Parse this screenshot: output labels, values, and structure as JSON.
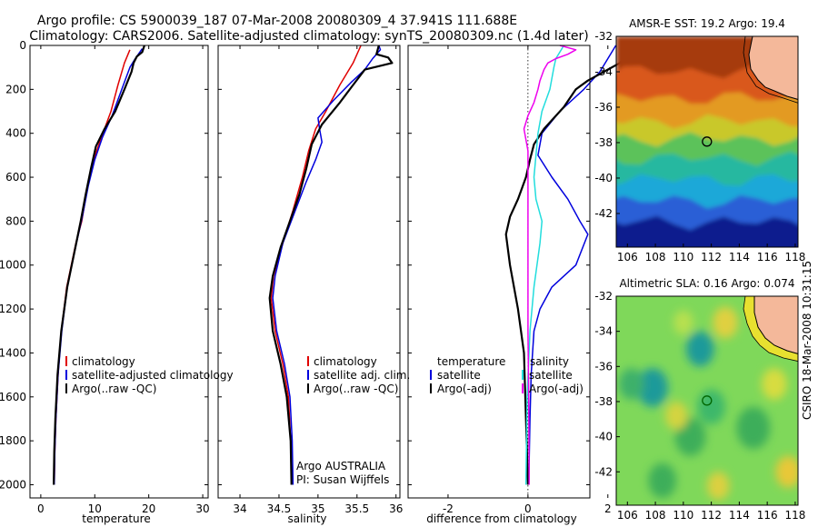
{
  "header": {
    "line1": "Argo profile: CS 5900039_187 07-Mar-2008 20080309_4 37.941S 111.688E",
    "line2": "Climatology: CARS2006. Satellite-adjusted climatology: synTS_20080309.nc (1.4d later)"
  },
  "side_label": "CSIRO 18-Mar-2008 10:31:15",
  "credit": {
    "line1": "Argo AUSTRALIA",
    "line2": "PI: Susan Wijffels"
  },
  "colors": {
    "climatology": "#e00000",
    "satellite": "#0000dd",
    "argo": "#000000",
    "sat_diff_salinity": "#22dddd",
    "argo_diff_salinity": "#ee00ee",
    "land": "#f4b89a",
    "argo_marker_sst": "#000000",
    "argo_marker_sla": "#006600"
  },
  "legends": {
    "temperature": [
      "climatology",
      "satellite-adjusted climatology",
      "Argo(..raw -QC)"
    ],
    "salinity": [
      "climatology",
      "satellite adj. clim.",
      "Argo(..raw -QC)"
    ],
    "difference": {
      "temp_head": "temperature",
      "sal_head": "salinity",
      "temp_items": [
        "satellite",
        "Argo(-adj)"
      ],
      "sal_items": [
        "satellite",
        "Argo(-adj)"
      ]
    }
  },
  "chart_data": [
    {
      "type": "line",
      "xlabel": "temperature",
      "ylabel": "",
      "xlim": [
        -2,
        31
      ],
      "ylim": [
        2060,
        0
      ],
      "x_ticks": [
        0,
        10,
        20,
        30
      ],
      "y_ticks": [
        0,
        200,
        400,
        600,
        800,
        1000,
        1200,
        1400,
        1600,
        1800,
        2000
      ],
      "y_reversed": true,
      "series": [
        {
          "name": "climatology",
          "color_key": "climatology",
          "points": [
            [
              16.5,
              20
            ],
            [
              15.5,
              80
            ],
            [
              14.3,
              180
            ],
            [
              13.0,
              300
            ],
            [
              11.2,
              420
            ],
            [
              9.8,
              520
            ],
            [
              8.6,
              650
            ],
            [
              7.6,
              800
            ],
            [
              6.5,
              900
            ],
            [
              4.8,
              1100
            ],
            [
              3.8,
              1300
            ],
            [
              3.2,
              1500
            ],
            [
              2.8,
              1700
            ],
            [
              2.6,
              1850
            ],
            [
              2.5,
              2000
            ]
          ]
        },
        {
          "name": "satellite-adjusted climatology",
          "color_key": "satellite",
          "points": [
            [
              18.8,
              15
            ],
            [
              17.5,
              60
            ],
            [
              16.5,
              100
            ],
            [
              15.0,
              200
            ],
            [
              13.2,
              320
            ],
            [
              11.4,
              420
            ],
            [
              10.0,
              520
            ],
            [
              8.8,
              640
            ],
            [
              7.7,
              780
            ],
            [
              6.6,
              900
            ],
            [
              4.9,
              1100
            ],
            [
              3.9,
              1300
            ],
            [
              3.2,
              1500
            ],
            [
              2.8,
              1700
            ],
            [
              2.6,
              1850
            ],
            [
              2.5,
              2000
            ]
          ]
        },
        {
          "name": "Argo(..raw -QC)",
          "color_key": "argo",
          "points": [
            [
              19.2,
              0
            ],
            [
              18.8,
              30
            ],
            [
              17.8,
              50
            ],
            [
              17.2,
              80
            ],
            [
              16.8,
              120
            ],
            [
              15.5,
              200
            ],
            [
              13.8,
              300
            ],
            [
              11.8,
              380
            ],
            [
              10.2,
              460
            ],
            [
              9.3,
              560
            ],
            [
              8.3,
              680
            ],
            [
              7.4,
              800
            ],
            [
              6.4,
              920
            ],
            [
              4.9,
              1100
            ],
            [
              3.8,
              1300
            ],
            [
              3.1,
              1500
            ],
            [
              2.7,
              1700
            ],
            [
              2.5,
              1850
            ],
            [
              2.4,
              2000
            ]
          ]
        }
      ]
    },
    {
      "type": "line",
      "xlabel": "salinity",
      "ylabel": "",
      "xlim": [
        33.72,
        36.05
      ],
      "ylim": [
        2060,
        0
      ],
      "x_ticks": [
        34,
        34.5,
        35,
        35.5,
        36
      ],
      "y_ticks": [
        0,
        200,
        400,
        600,
        800,
        1000,
        1200,
        1400,
        1600,
        1800,
        2000
      ],
      "y_reversed": true,
      "series": [
        {
          "name": "climatology",
          "color_key": "climatology",
          "points": [
            [
              35.55,
              0
            ],
            [
              35.45,
              80
            ],
            [
              35.28,
              180
            ],
            [
              35.1,
              300
            ],
            [
              34.97,
              380
            ],
            [
              34.88,
              480
            ],
            [
              34.8,
              600
            ],
            [
              34.68,
              750
            ],
            [
              34.55,
              900
            ],
            [
              34.43,
              1050
            ],
            [
              34.4,
              1150
            ],
            [
              34.45,
              1300
            ],
            [
              34.55,
              1450
            ],
            [
              34.62,
              1600
            ],
            [
              34.65,
              1800
            ],
            [
              34.66,
              2000
            ]
          ]
        },
        {
          "name": "satellite adj. clim.",
          "color_key": "satellite",
          "points": [
            [
              35.78,
              0
            ],
            [
              35.8,
              20
            ],
            [
              35.7,
              60
            ],
            [
              35.6,
              110
            ],
            [
              35.42,
              170
            ],
            [
              35.2,
              250
            ],
            [
              35.0,
              330
            ],
            [
              35.02,
              380
            ],
            [
              35.05,
              440
            ],
            [
              34.97,
              520
            ],
            [
              34.85,
              620
            ],
            [
              34.7,
              760
            ],
            [
              34.55,
              900
            ],
            [
              34.45,
              1050
            ],
            [
              34.42,
              1150
            ],
            [
              34.47,
              1300
            ],
            [
              34.57,
              1450
            ],
            [
              34.64,
              1600
            ],
            [
              34.67,
              1800
            ],
            [
              34.68,
              2000
            ]
          ]
        },
        {
          "name": "Argo(..raw -QC)",
          "color_key": "argo",
          "points": [
            [
              35.78,
              0
            ],
            [
              35.75,
              40
            ],
            [
              35.9,
              55
            ],
            [
              35.95,
              80
            ],
            [
              35.6,
              110
            ],
            [
              35.45,
              180
            ],
            [
              35.28,
              260
            ],
            [
              35.05,
              360
            ],
            [
              34.92,
              450
            ],
            [
              34.85,
              560
            ],
            [
              34.76,
              680
            ],
            [
              34.64,
              800
            ],
            [
              34.52,
              920
            ],
            [
              34.42,
              1050
            ],
            [
              34.38,
              1150
            ],
            [
              34.42,
              1300
            ],
            [
              34.52,
              1450
            ],
            [
              34.6,
              1600
            ],
            [
              34.65,
              1800
            ],
            [
              34.66,
              2000
            ]
          ]
        }
      ]
    },
    {
      "type": "line",
      "xlabel": "difference from climatology",
      "ylabel": "",
      "xlim": [
        -3.0,
        1.55
      ],
      "ylim": [
        2060,
        0
      ],
      "x_ticks": [
        -2,
        0,
        2
      ],
      "y_ticks": [
        0,
        200,
        400,
        600,
        800,
        1000,
        1200,
        1400,
        1600,
        1800,
        2000
      ],
      "y_reversed": true,
      "zero_line": 0,
      "series": [
        {
          "name": "temperature satellite",
          "color_key": "satellite",
          "points": [
            [
              2.2,
              0
            ],
            [
              2.0,
              60
            ],
            [
              1.8,
              120
            ],
            [
              1.4,
              200
            ],
            [
              0.8,
              300
            ],
            [
              0.35,
              400
            ],
            [
              0.25,
              500
            ],
            [
              0.6,
              600
            ],
            [
              1.0,
              700
            ],
            [
              1.3,
              800
            ],
            [
              1.5,
              860
            ],
            [
              1.2,
              1000
            ],
            [
              0.6,
              1100
            ],
            [
              0.3,
              1200
            ],
            [
              0.15,
              1300
            ],
            [
              0.08,
              1500
            ],
            [
              0.05,
              1700
            ],
            [
              0.02,
              2000
            ]
          ]
        },
        {
          "name": "temperature Argo(-adj)",
          "color_key": "argo",
          "points": [
            [
              2.6,
              0
            ],
            [
              2.5,
              40
            ],
            [
              2.3,
              80
            ],
            [
              1.9,
              120
            ],
            [
              1.5,
              160
            ],
            [
              1.2,
              200
            ],
            [
              0.9,
              280
            ],
            [
              0.4,
              380
            ],
            [
              0.15,
              450
            ],
            [
              0.05,
              520
            ],
            [
              -0.05,
              600
            ],
            [
              -0.25,
              700
            ],
            [
              -0.45,
              780
            ],
            [
              -0.55,
              860
            ],
            [
              -0.45,
              1000
            ],
            [
              -0.25,
              1200
            ],
            [
              -0.1,
              1400
            ],
            [
              -0.05,
              1700
            ],
            [
              0.0,
              2000
            ]
          ]
        },
        {
          "name": "salinity satellite",
          "color_key": "sat_diff_salinity",
          "points": [
            [
              0.9,
              0
            ],
            [
              0.7,
              60
            ],
            [
              0.65,
              100
            ],
            [
              0.55,
              200
            ],
            [
              0.35,
              300
            ],
            [
              0.25,
              400
            ],
            [
              0.2,
              500
            ],
            [
              0.15,
              600
            ],
            [
              0.2,
              700
            ],
            [
              0.35,
              800
            ],
            [
              0.3,
              900
            ],
            [
              0.15,
              1100
            ],
            [
              0.05,
              1300
            ],
            [
              -0.02,
              1600
            ],
            [
              -0.05,
              2000
            ]
          ]
        },
        {
          "name": "salinity Argo(-adj)",
          "color_key": "argo_diff_salinity",
          "points": [
            [
              0.8,
              0
            ],
            [
              1.2,
              20
            ],
            [
              1.0,
              40
            ],
            [
              0.7,
              60
            ],
            [
              0.5,
              80
            ],
            [
              0.4,
              110
            ],
            [
              0.3,
              160
            ],
            [
              0.25,
              200
            ],
            [
              0.15,
              260
            ],
            [
              0.0,
              320
            ],
            [
              -0.1,
              380
            ],
            [
              0.0,
              480
            ],
            [
              0.0,
              600
            ],
            [
              0.0,
              800
            ],
            [
              0.0,
              1000
            ],
            [
              0.0,
              1300
            ],
            [
              0.02,
              1600
            ],
            [
              0.03,
              2000
            ]
          ]
        }
      ]
    },
    {
      "type": "heatmap",
      "title": "AMSR-E SST: 19.2 Argo: 19.4",
      "xlim": [
        105.2,
        118.2
      ],
      "ylim": [
        -43.9,
        -32
      ],
      "x_ticks": [
        106,
        108,
        110,
        112,
        114,
        116,
        118
      ],
      "y_ticks": [
        -32,
        -34,
        -36,
        -38,
        -40,
        -42
      ],
      "argo_position": [
        111.688,
        -37.941
      ],
      "field_note": "warm (red) north grading to cold (blue) south",
      "color_stops": [
        {
          "lat": -32.5,
          "color": "#a63a10"
        },
        {
          "lat": -34.5,
          "color": "#d9581a"
        },
        {
          "lat": -36.0,
          "color": "#e39a20"
        },
        {
          "lat": -37.3,
          "color": "#c9c82a"
        },
        {
          "lat": -38.3,
          "color": "#5cc25a"
        },
        {
          "lat": -39.4,
          "color": "#28b8a0"
        },
        {
          "lat": -40.6,
          "color": "#1ca8d8"
        },
        {
          "lat": -41.8,
          "color": "#2a5ed6"
        },
        {
          "lat": -43.0,
          "color": "#0c1c8e"
        }
      ]
    },
    {
      "type": "heatmap",
      "title": "Altimetric SLA: 0.16 Argo: 0.074",
      "xlim": [
        105.2,
        118.2
      ],
      "ylim": [
        -43.9,
        -32
      ],
      "x_ticks": [
        106,
        108,
        110,
        112,
        114,
        116,
        118
      ],
      "y_ticks": [
        -32,
        -34,
        -36,
        -38,
        -40,
        -42
      ],
      "argo_position": [
        111.688,
        -37.941
      ],
      "background_color": "#7fd85a",
      "anomalies": [
        {
          "lon": 111.2,
          "lat": -35.0,
          "r": 1.0,
          "color": "#1e9a9a"
        },
        {
          "lon": 107.8,
          "lat": -37.2,
          "r": 1.1,
          "color": "#1e9a9a"
        },
        {
          "lon": 106.3,
          "lat": -37.0,
          "r": 0.9,
          "color": "#3cb06a"
        },
        {
          "lon": 112.0,
          "lat": -38.3,
          "r": 1.0,
          "color": "#3cb86a"
        },
        {
          "lon": 115.0,
          "lat": -39.5,
          "r": 1.2,
          "color": "#3cae5a"
        },
        {
          "lon": 110.5,
          "lat": -40.0,
          "r": 1.1,
          "color": "#3cae5a"
        },
        {
          "lon": 108.5,
          "lat": -42.5,
          "r": 1.0,
          "color": "#3cae5a"
        },
        {
          "lon": 113.0,
          "lat": -33.5,
          "r": 0.9,
          "color": "#e0d040"
        },
        {
          "lon": 110.0,
          "lat": -33.5,
          "r": 0.7,
          "color": "#b8e050"
        },
        {
          "lon": 116.5,
          "lat": -37.0,
          "r": 0.9,
          "color": "#d8dc40"
        },
        {
          "lon": 109.5,
          "lat": -38.8,
          "r": 0.8,
          "color": "#d4d440"
        },
        {
          "lon": 117.5,
          "lat": -42.0,
          "r": 0.9,
          "color": "#e8c838"
        },
        {
          "lon": 112.5,
          "lat": -42.8,
          "r": 0.8,
          "color": "#dcd040"
        }
      ]
    }
  ]
}
